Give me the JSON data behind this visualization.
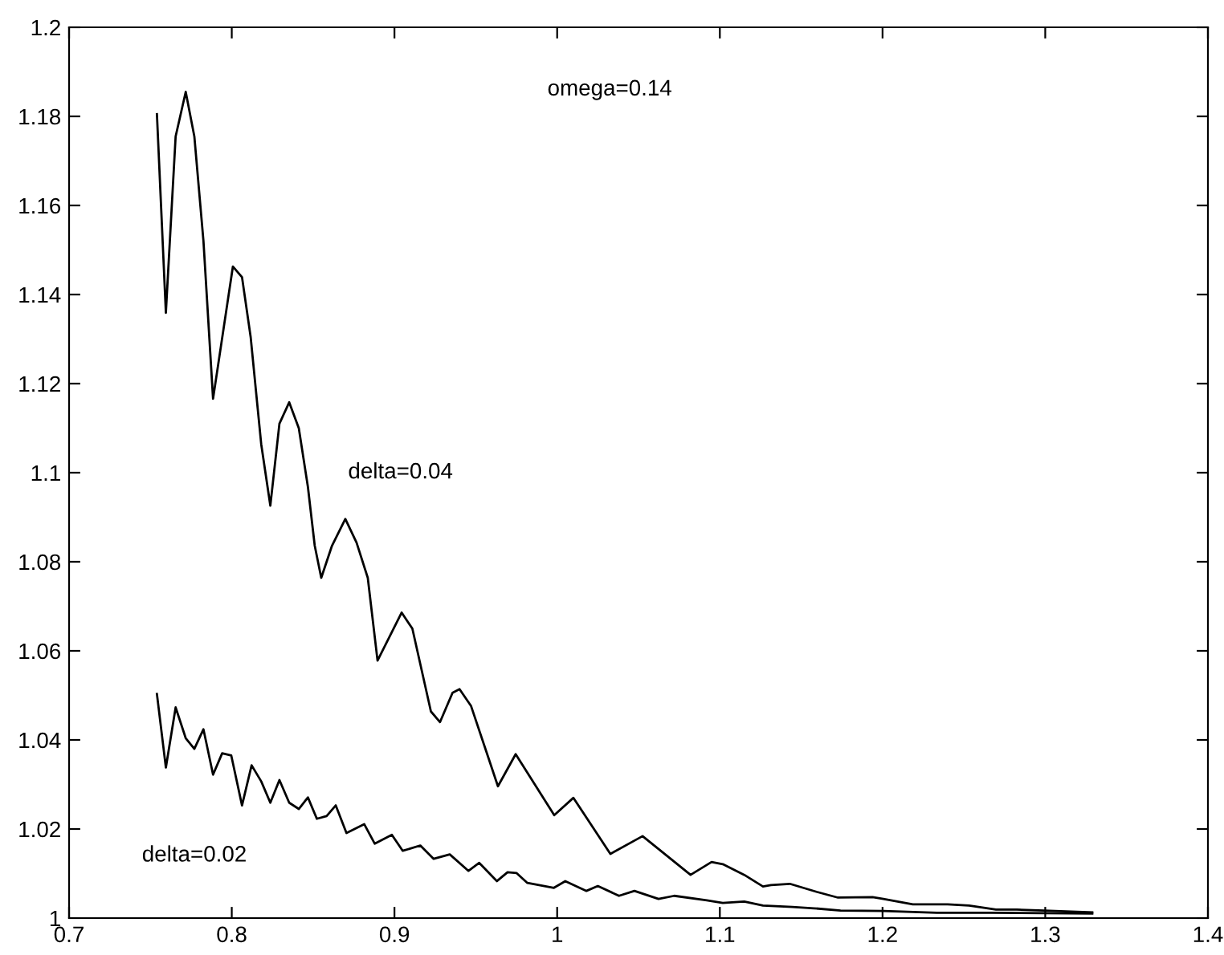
{
  "chart_data": {
    "type": "line",
    "xlim": [
      0.7,
      1.4
    ],
    "ylim": [
      1,
      1.2
    ],
    "xticks": [
      0.7,
      0.8,
      0.9,
      1,
      1.1,
      1.2,
      1.3,
      1.4
    ],
    "yticks": [
      1,
      1.02,
      1.04,
      1.06,
      1.08,
      1.1,
      1.12,
      1.14,
      1.16,
      1.18,
      1.2
    ],
    "grid": false,
    "legend": false,
    "line_style": "solid",
    "marker": "none",
    "annotations": [
      "omega=0.14"
    ],
    "series": [
      {
        "name": "delta=0.04",
        "color": "#000000",
        "x": [
          0.754,
          0.7595,
          0.7655,
          0.7717,
          0.777,
          0.7826,
          0.7885,
          0.8007,
          0.8063,
          0.8116,
          0.8181,
          0.8237,
          0.8293,
          0.8353,
          0.8412,
          0.8468,
          0.851,
          0.855,
          0.8616,
          0.8698,
          0.8767,
          0.8836,
          0.8896,
          0.9044,
          0.911,
          0.9224,
          0.928,
          0.9357,
          0.94,
          0.9471,
          0.957,
          0.9636,
          0.9745,
          0.9982,
          1.01,
          1.0327,
          1.0525,
          1.082,
          1.0949,
          1.1018,
          1.115,
          1.1265,
          1.1314,
          1.143,
          1.1594,
          1.1726,
          1.1939,
          1.2005,
          1.2186,
          1.24,
          1.2532,
          1.2697,
          1.2825,
          1.2993,
          1.3289
        ],
        "values": [
          1.1805,
          1.1359,
          1.1755,
          1.1855,
          1.1755,
          1.152,
          1.1166,
          1.1463,
          1.1439,
          1.1305,
          1.1064,
          1.0926,
          1.111,
          1.1158,
          1.11,
          1.0968,
          1.0836,
          1.0764,
          1.0836,
          1.0896,
          1.0843,
          1.0764,
          1.0578,
          1.0686,
          1.065,
          1.0464,
          1.044,
          1.0506,
          1.0514,
          1.0476,
          1.0368,
          1.0296,
          1.0368,
          1.0231,
          1.027,
          1.0144,
          1.0184,
          1.0097,
          1.0126,
          1.0121,
          1.0097,
          1.0071,
          1.0074,
          1.0077,
          1.0059,
          1.0046,
          1.0047,
          1.0043,
          1.0031,
          1.0031,
          1.0028,
          1.0019,
          1.0019,
          1.0017,
          1.0013
        ]
      },
      {
        "name": "delta=0.02",
        "color": "#000000",
        "x": [
          0.754,
          0.7595,
          0.7655,
          0.7717,
          0.777,
          0.7826,
          0.7885,
          0.7941,
          0.7997,
          0.8063,
          0.8122,
          0.8181,
          0.8237,
          0.8293,
          0.8353,
          0.8412,
          0.8468,
          0.8523,
          0.8583,
          0.8639,
          0.8705,
          0.8814,
          0.8879,
          0.8984,
          0.9051,
          0.9159,
          0.9241,
          0.934,
          0.9455,
          0.9521,
          0.963,
          0.9695,
          0.9751,
          0.9817,
          0.998,
          1.005,
          1.018,
          1.025,
          1.038,
          1.0475,
          1.0623,
          1.072,
          1.092,
          1.1018,
          1.115,
          1.1265,
          1.1446,
          1.1578,
          1.1742,
          1.2005,
          1.2334,
          1.2664,
          1.3289
        ],
        "values": [
          1.0503,
          1.0338,
          1.0473,
          1.0404,
          1.038,
          1.0424,
          1.0322,
          1.037,
          1.0365,
          1.0253,
          1.0343,
          1.0307,
          1.0259,
          1.031,
          1.0259,
          1.0245,
          1.0271,
          1.0223,
          1.0229,
          1.0253,
          1.0191,
          1.0211,
          1.0167,
          1.0187,
          1.0151,
          1.0163,
          1.0133,
          1.0143,
          1.0106,
          1.0124,
          1.0083,
          1.0103,
          1.0101,
          1.0079,
          1.0068,
          1.0083,
          1.0061,
          1.0072,
          1.005,
          1.0061,
          1.0043,
          1.005,
          1.004,
          1.0034,
          1.0037,
          1.0028,
          1.0025,
          1.0022,
          1.0017,
          1.0016,
          1.0012,
          1.0012,
          1.001
        ]
      }
    ]
  }
}
